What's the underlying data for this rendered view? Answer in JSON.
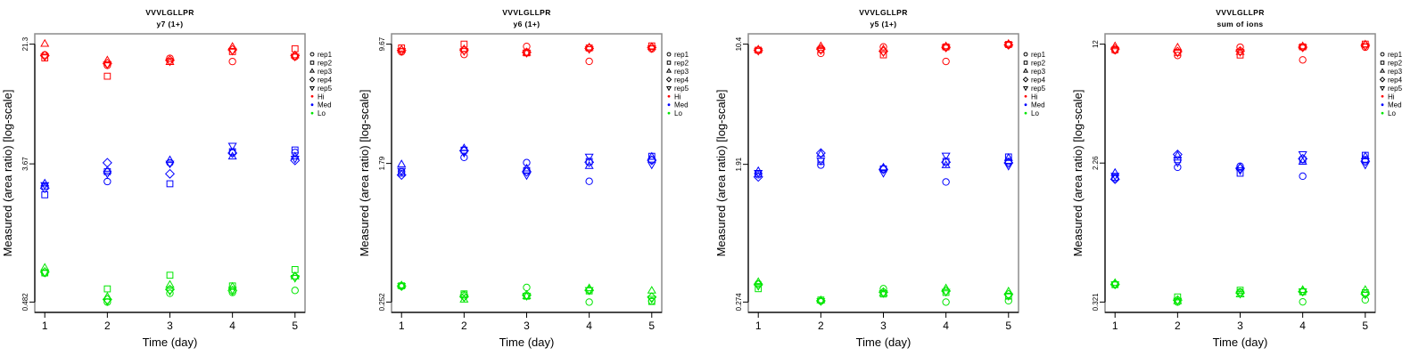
{
  "legend": {
    "position": "right",
    "replicates": [
      {
        "label": "rep1",
        "symbol": "circle"
      },
      {
        "label": "rep2",
        "symbol": "square"
      },
      {
        "label": "rep3",
        "symbol": "triangle-up"
      },
      {
        "label": "rep4",
        "symbol": "diamond"
      },
      {
        "label": "rep5",
        "symbol": "triangle-down"
      }
    ],
    "groups": [
      {
        "label": "Hi",
        "color": "#ff0000"
      },
      {
        "label": "Med",
        "color": "#0000ff"
      },
      {
        "label": "Lo",
        "color": "#00e600"
      }
    ]
  },
  "chart_data": [
    {
      "type": "scatter",
      "title": "VVVLGLLPR",
      "subtitle": "y7 (1+)",
      "xlabel": "Time (day)",
      "ylabel": "Measured (area ratio) [log-scale]",
      "yscale": "log",
      "grid": false,
      "legend_position": "right",
      "x": [
        1,
        2,
        3,
        4,
        5
      ],
      "xticks": [
        1,
        2,
        3,
        4,
        5
      ],
      "xlim": [
        1,
        5
      ],
      "yticks": [
        0.482,
        3.67,
        21.3
      ],
      "ylim": [
        0.482,
        21.3
      ],
      "series": [
        {
          "group": "Hi",
          "replicate": "rep1",
          "values": [
            18.2,
            15.6,
            17.3,
            16.5,
            17.7
          ]
        },
        {
          "group": "Hi",
          "replicate": "rep2",
          "values": [
            17.4,
            13.3,
            16.5,
            19.1,
            19.9
          ]
        },
        {
          "group": "Hi",
          "replicate": "rep3",
          "values": [
            21.3,
            16.7,
            16.3,
            20.4,
            18.0
          ]
        },
        {
          "group": "Hi",
          "replicate": "rep4",
          "values": [
            18.0,
            16.0,
            16.8,
            19.6,
            18.0
          ]
        },
        {
          "group": "Hi",
          "replicate": "rep5",
          "values": [
            17.8,
            15.9,
            16.6,
            19.4,
            17.8
          ]
        },
        {
          "group": "Med",
          "replicate": "rep1",
          "values": [
            2.63,
            2.83,
            3.73,
            4.34,
            4.34
          ]
        },
        {
          "group": "Med",
          "replicate": "rep2",
          "values": [
            2.33,
            3.27,
            2.74,
            4.39,
            4.5
          ]
        },
        {
          "group": "Med",
          "replicate": "rep3",
          "values": [
            2.74,
            3.31,
            3.86,
            4.07,
            4.07
          ]
        },
        {
          "group": "Med",
          "replicate": "rep4",
          "values": [
            2.57,
            3.73,
            3.17,
            4.3,
            3.86
          ]
        },
        {
          "group": "Med",
          "replicate": "rep5",
          "values": [
            2.7,
            3.19,
            3.7,
            4.81,
            3.98
          ]
        },
        {
          "group": "Lo",
          "replicate": "rep1",
          "values": [
            0.737,
            0.482,
            0.548,
            0.555,
            0.572
          ]
        },
        {
          "group": "Lo",
          "replicate": "rep2",
          "values": [
            0.74,
            0.585,
            0.715,
            0.611,
            0.777
          ]
        },
        {
          "group": "Lo",
          "replicate": "rep3",
          "values": [
            0.794,
            0.519,
            0.619,
            0.601,
            0.699
          ]
        },
        {
          "group": "Lo",
          "replicate": "rep4",
          "values": [
            0.75,
            0.5,
            0.58,
            0.57,
            0.7
          ]
        },
        {
          "group": "Lo",
          "replicate": "rep5",
          "values": [
            0.745,
            0.49,
            0.57,
            0.58,
            0.69
          ]
        }
      ]
    },
    {
      "type": "scatter",
      "title": "VVVLGLLPR",
      "subtitle": "y6 (1+)",
      "xlabel": "Time (day)",
      "ylabel": "Measured (area ratio) [log-scale]",
      "yscale": "log",
      "grid": false,
      "legend_position": "right",
      "x": [
        1,
        2,
        3,
        4,
        5
      ],
      "xticks": [
        1,
        2,
        3,
        4,
        5
      ],
      "xlim": [
        1,
        5
      ],
      "yticks": [
        0.252,
        1.79,
        9.67
      ],
      "ylim": [
        0.252,
        9.67
      ],
      "series": [
        {
          "group": "Hi",
          "replicate": "rep1",
          "values": [
            8.67,
            8.35,
            9.36,
            7.58,
            9.04
          ]
        },
        {
          "group": "Hi",
          "replicate": "rep2",
          "values": [
            9.16,
            9.67,
            8.55,
            9.16,
            9.43
          ]
        },
        {
          "group": "Hi",
          "replicate": "rep3",
          "values": [
            8.9,
            8.97,
            8.52,
            9.2,
            9.24
          ]
        },
        {
          "group": "Hi",
          "replicate": "rep4",
          "values": [
            8.85,
            8.9,
            8.6,
            9.1,
            9.2
          ]
        },
        {
          "group": "Hi",
          "replicate": "rep5",
          "values": [
            8.8,
            8.8,
            8.58,
            9.05,
            9.15
          ]
        },
        {
          "group": "Med",
          "replicate": "rep1",
          "values": [
            1.59,
            1.95,
            1.81,
            1.39,
            1.88
          ]
        },
        {
          "group": "Med",
          "replicate": "rep2",
          "values": [
            1.56,
            2.16,
            1.62,
            1.84,
            1.98
          ]
        },
        {
          "group": "Med",
          "replicate": "rep3",
          "values": [
            1.76,
            2.21,
            1.66,
            1.72,
            1.96
          ]
        },
        {
          "group": "Med",
          "replicate": "rep4",
          "values": [
            1.52,
            2.14,
            1.59,
            1.82,
            1.87
          ]
        },
        {
          "group": "Med",
          "replicate": "rep5",
          "values": [
            1.62,
            2.09,
            1.52,
            1.98,
            1.77
          ]
        },
        {
          "group": "Lo",
          "replicate": "rep1",
          "values": [
            0.315,
            0.279,
            0.31,
            0.252,
            0.256
          ]
        },
        {
          "group": "Lo",
          "replicate": "rep2",
          "values": [
            0.317,
            0.283,
            0.274,
            0.295,
            0.254
          ]
        },
        {
          "group": "Lo",
          "replicate": "rep3",
          "values": [
            0.318,
            0.26,
            0.273,
            0.305,
            0.295
          ]
        },
        {
          "group": "Lo",
          "replicate": "rep4",
          "values": [
            0.316,
            0.272,
            0.278,
            0.298,
            0.27
          ]
        },
        {
          "group": "Lo",
          "replicate": "rep5",
          "values": [
            0.317,
            0.27,
            0.276,
            0.3,
            0.265
          ]
        }
      ]
    },
    {
      "type": "scatter",
      "title": "VVVLGLLPR",
      "subtitle": "y5 (1+)",
      "xlabel": "Time (day)",
      "ylabel": "Measured (area ratio) [log-scale]",
      "yscale": "log",
      "grid": false,
      "legend_position": "right",
      "x": [
        1,
        2,
        3,
        4,
        5
      ],
      "xticks": [
        1,
        2,
        3,
        4,
        5
      ],
      "xlim": [
        1,
        5
      ],
      "yticks": [
        0.274,
        1.91,
        10.4
      ],
      "ylim": [
        0.274,
        10.4
      ],
      "series": [
        {
          "group": "Hi",
          "replicate": "rep1",
          "values": [
            9.52,
            9.13,
            10.0,
            8.15,
            10.3
          ]
        },
        {
          "group": "Hi",
          "replicate": "rep2",
          "values": [
            9.55,
            9.64,
            8.94,
            10.0,
            10.35
          ]
        },
        {
          "group": "Hi",
          "replicate": "rep3",
          "values": [
            9.6,
            10.06,
            9.64,
            10.05,
            10.4
          ]
        },
        {
          "group": "Hi",
          "replicate": "rep4",
          "values": [
            9.55,
            9.7,
            9.4,
            9.95,
            10.3
          ]
        },
        {
          "group": "Hi",
          "replicate": "rep5",
          "values": [
            9.5,
            9.6,
            9.3,
            9.95,
            10.35
          ]
        },
        {
          "group": "Med",
          "replicate": "rep1",
          "values": [
            1.65,
            1.89,
            1.8,
            1.49,
            1.99
          ]
        },
        {
          "group": "Med",
          "replicate": "rep2",
          "values": [
            1.68,
            1.99,
            1.79,
            1.99,
            2.12
          ]
        },
        {
          "group": "Med",
          "replicate": "rep3",
          "values": [
            1.73,
            2.2,
            1.82,
            1.88,
            2.08
          ]
        },
        {
          "group": "Med",
          "replicate": "rep4",
          "values": [
            1.6,
            2.24,
            1.78,
            1.97,
            1.95
          ]
        },
        {
          "group": "Med",
          "replicate": "rep5",
          "values": [
            1.7,
            2.02,
            1.7,
            2.17,
            1.88
          ]
        },
        {
          "group": "Lo",
          "replicate": "rep1",
          "values": [
            0.355,
            0.278,
            0.331,
            0.274,
            0.279
          ]
        },
        {
          "group": "Lo",
          "replicate": "rep2",
          "values": [
            0.331,
            0.282,
            0.307,
            0.314,
            0.298
          ]
        },
        {
          "group": "Lo",
          "replicate": "rep3",
          "values": [
            0.362,
            0.28,
            0.309,
            0.331,
            0.317
          ]
        },
        {
          "group": "Lo",
          "replicate": "rep4",
          "values": [
            0.35,
            0.279,
            0.315,
            0.32,
            0.305
          ]
        },
        {
          "group": "Lo",
          "replicate": "rep5",
          "values": [
            0.345,
            0.279,
            0.312,
            0.318,
            0.3
          ]
        }
      ]
    },
    {
      "type": "scatter",
      "title": "VVVLGLLPR",
      "subtitle": "sum of ions",
      "xlabel": "Time (day)",
      "ylabel": "Measured (area ratio) [log-scale]",
      "yscale": "log",
      "grid": false,
      "legend_position": "right",
      "x": [
        1,
        2,
        3,
        4,
        5
      ],
      "xticks": [
        1,
        2,
        3,
        4,
        5
      ],
      "xlim": [
        1,
        5
      ],
      "yticks": [
        0.321,
        2.26,
        12
      ],
      "ylim": [
        0.321,
        12
      ],
      "series": [
        {
          "group": "Hi",
          "replicate": "rep1",
          "values": [
            11.0,
            10.24,
            11.5,
            9.62,
            11.5
          ]
        },
        {
          "group": "Hi",
          "replicate": "rep2",
          "values": [
            11.1,
            10.68,
            10.3,
            11.55,
            12.0
          ]
        },
        {
          "group": "Hi",
          "replicate": "rep3",
          "values": [
            11.6,
            11.4,
            10.7,
            11.6,
            11.9
          ]
        },
        {
          "group": "Hi",
          "replicate": "rep4",
          "values": [
            11.2,
            10.8,
            10.9,
            11.5,
            11.8
          ]
        },
        {
          "group": "Hi",
          "replicate": "rep5",
          "values": [
            11.1,
            10.7,
            10.8,
            11.5,
            11.7
          ]
        },
        {
          "group": "Med",
          "replicate": "rep1",
          "values": [
            1.82,
            2.13,
            2.16,
            1.88,
            2.37
          ]
        },
        {
          "group": "Med",
          "replicate": "rep2",
          "values": [
            1.85,
            2.37,
            1.96,
            2.37,
            2.52
          ]
        },
        {
          "group": "Med",
          "replicate": "rep3",
          "values": [
            1.96,
            2.5,
            2.12,
            2.29,
            2.47
          ]
        },
        {
          "group": "Med",
          "replicate": "rep4",
          "values": [
            1.8,
            2.55,
            2.1,
            2.4,
            2.32
          ]
        },
        {
          "group": "Med",
          "replicate": "rep5",
          "values": [
            1.9,
            2.29,
            2.05,
            2.57,
            2.22
          ]
        },
        {
          "group": "Lo",
          "replicate": "rep1",
          "values": [
            0.413,
            0.321,
            0.37,
            0.322,
            0.331
          ]
        },
        {
          "group": "Lo",
          "replicate": "rep2",
          "values": [
            0.41,
            0.345,
            0.379,
            0.371,
            0.366
          ]
        },
        {
          "group": "Lo",
          "replicate": "rep3",
          "values": [
            0.418,
            0.324,
            0.356,
            0.379,
            0.379
          ]
        },
        {
          "group": "Lo",
          "replicate": "rep4",
          "values": [
            0.412,
            0.33,
            0.365,
            0.372,
            0.36
          ]
        },
        {
          "group": "Lo",
          "replicate": "rep5",
          "values": [
            0.413,
            0.328,
            0.362,
            0.374,
            0.358
          ]
        }
      ]
    }
  ]
}
